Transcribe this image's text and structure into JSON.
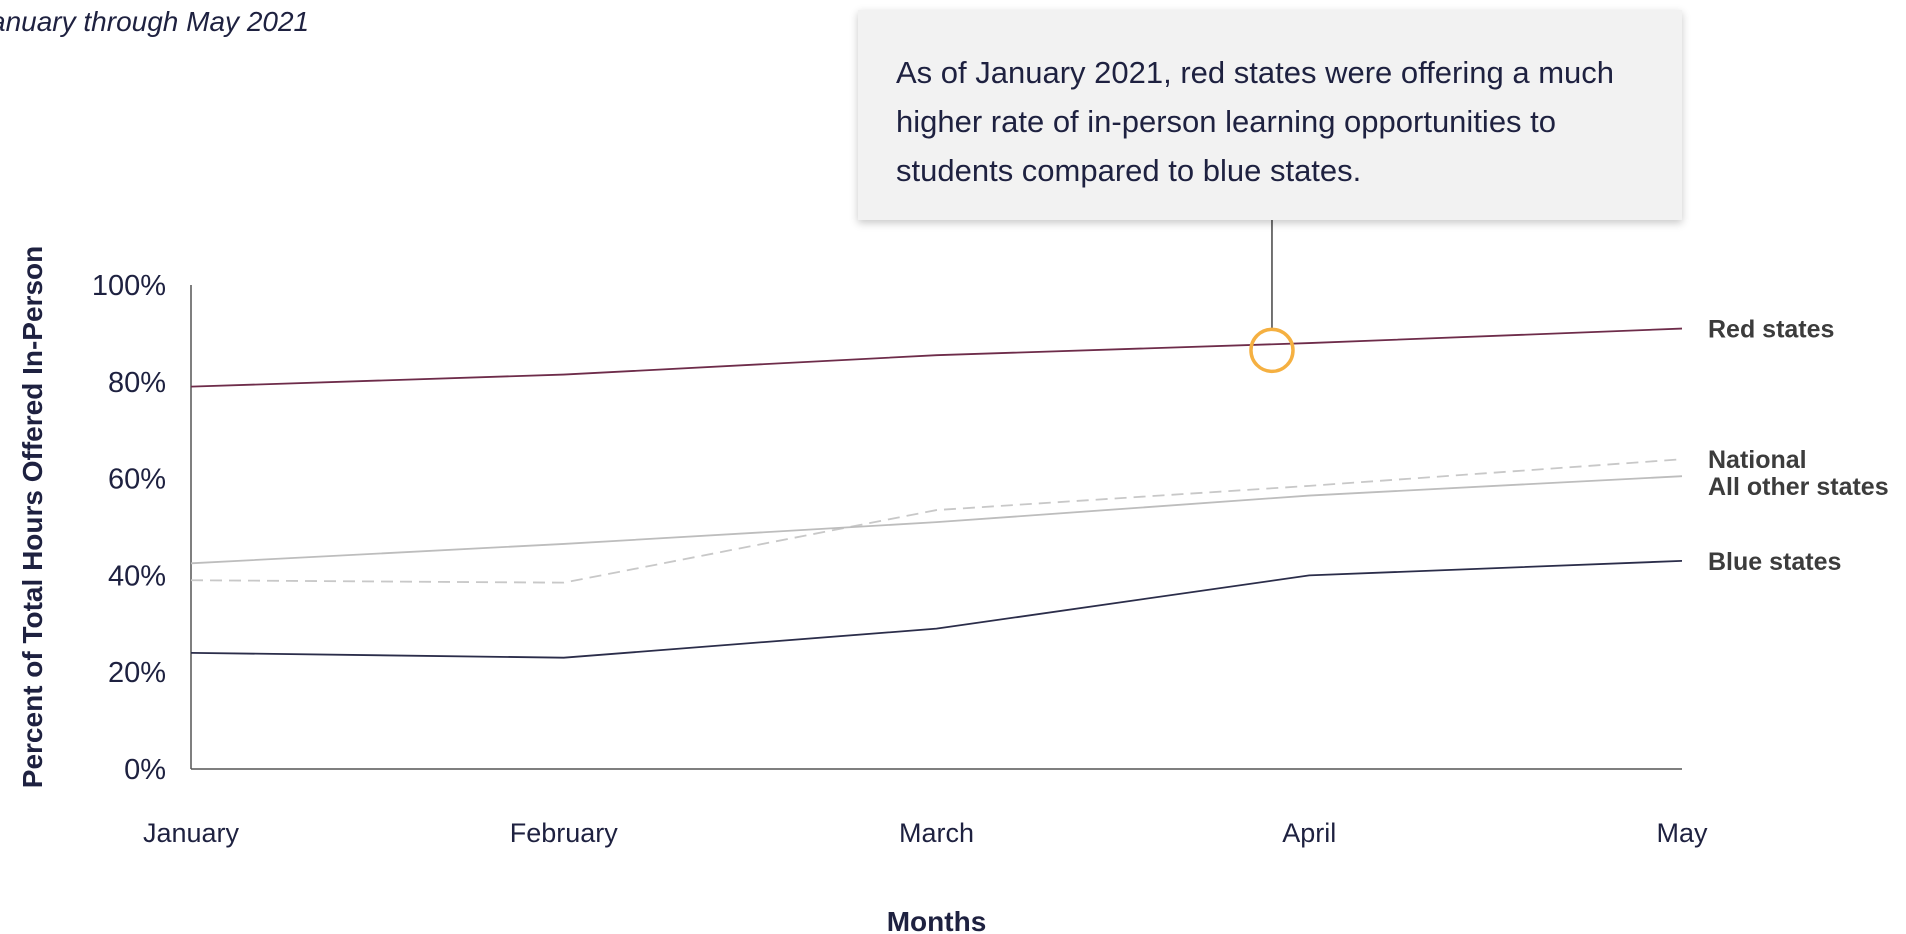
{
  "subtitle": "anuary through May 2021",
  "callout": {
    "text": "As of January 2021, red states were offering a much higher rate of in-person learning opportunities to students compared to blue states."
  },
  "chart_data": {
    "type": "line",
    "title": "",
    "subtitle": "anuary through May 2021",
    "xlabel": "Months",
    "ylabel": "Percent of Total Hours Offered In-Person",
    "categories": [
      "January",
      "February",
      "March",
      "April",
      "May"
    ],
    "ylim": [
      0,
      100
    ],
    "yticks": [
      "0%",
      "20%",
      "40%",
      "60%",
      "80%",
      "100%"
    ],
    "grid": false,
    "legend": "inline-right",
    "highlight": {
      "series": "Red states",
      "x": 2.9,
      "y": 86.5,
      "color": "#f5b041"
    },
    "series": [
      {
        "name": "Red states",
        "color": "#6e2c4a",
        "dash": false,
        "values": [
          79,
          81.5,
          85.5,
          88,
          91
        ]
      },
      {
        "name": "National",
        "color": "#c8c8c8",
        "dash": true,
        "values": [
          39,
          38.5,
          53.5,
          58.5,
          64
        ]
      },
      {
        "name": "All other states",
        "color": "#bdbdbd",
        "dash": false,
        "values": [
          42.5,
          46.5,
          51,
          56.5,
          60.5
        ]
      },
      {
        "name": "Blue states",
        "color": "#2b2d4a",
        "dash": false,
        "values": [
          24,
          23,
          29,
          40,
          43
        ]
      }
    ]
  }
}
